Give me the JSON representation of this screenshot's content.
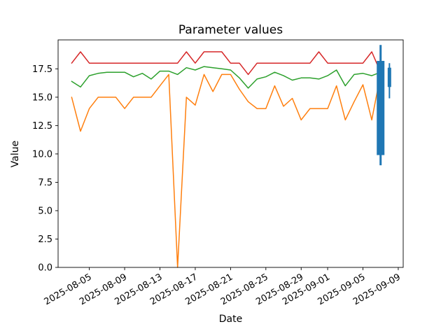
{
  "figure": {
    "background": "#ffffff",
    "text_color": "#000000"
  },
  "chart_data": {
    "type": "line",
    "title": "Parameter values",
    "xlabel": "Date",
    "ylabel": "Value",
    "grid": false,
    "legend": null,
    "ylim": [
      0,
      20.05
    ],
    "xlim_days": [
      -1.54,
      37.56
    ],
    "yticks": [
      {
        "label": "0.0",
        "value": 0
      },
      {
        "label": "2.5",
        "value": 2.5
      },
      {
        "label": "5.0",
        "value": 5
      },
      {
        "label": "7.5",
        "value": 7.5
      },
      {
        "label": "10.0",
        "value": 10
      },
      {
        "label": "12.5",
        "value": 12.5
      },
      {
        "label": "15.0",
        "value": 15
      },
      {
        "label": "17.5",
        "value": 17.5
      }
    ],
    "xticks": [
      {
        "label": "2025-08-05",
        "day": 2
      },
      {
        "label": "2025-08-09",
        "day": 6
      },
      {
        "label": "2025-08-13",
        "day": 10
      },
      {
        "label": "2025-08-17",
        "day": 14
      },
      {
        "label": "2025-08-21",
        "day": 18
      },
      {
        "label": "2025-08-25",
        "day": 22
      },
      {
        "label": "2025-08-29",
        "day": 26
      },
      {
        "label": "2025-09-01",
        "day": 29
      },
      {
        "label": "2025-09-05",
        "day": 33
      },
      {
        "label": "2025-09-09",
        "day": 37
      }
    ],
    "x_dates": [
      "2025-08-03",
      "2025-08-04",
      "2025-08-05",
      "2025-08-06",
      "2025-08-07",
      "2025-08-08",
      "2025-08-09",
      "2025-08-10",
      "2025-08-11",
      "2025-08-12",
      "2025-08-13",
      "2025-08-14",
      "2025-08-15",
      "2025-08-16",
      "2025-08-17",
      "2025-08-18",
      "2025-08-19",
      "2025-08-20",
      "2025-08-21",
      "2025-08-22",
      "2025-08-23",
      "2025-08-24",
      "2025-08-25",
      "2025-08-26",
      "2025-08-27",
      "2025-08-28",
      "2025-08-29",
      "2025-08-30",
      "2025-08-31",
      "2025-09-01",
      "2025-09-02",
      "2025-09-03",
      "2025-09-04",
      "2025-09-05",
      "2025-09-06",
      "2025-09-07"
    ],
    "series": [
      {
        "name": "red",
        "color": "#d62728",
        "values": [
          18,
          19,
          18,
          18,
          18,
          18,
          18,
          18,
          18,
          18,
          18,
          18,
          18,
          19,
          18,
          19,
          19,
          19,
          18,
          18,
          17,
          18,
          18,
          18,
          18,
          18,
          18,
          18,
          19,
          18,
          18,
          18,
          18,
          18,
          19,
          17.2
        ]
      },
      {
        "name": "green",
        "color": "#2ca02c",
        "values": [
          16.4,
          15.9,
          16.9,
          17.1,
          17.2,
          17.2,
          17.2,
          16.8,
          17.1,
          16.6,
          17.3,
          17.3,
          17.0,
          17.6,
          17.4,
          17.7,
          17.6,
          17.5,
          17.4,
          16.7,
          15.8,
          16.6,
          16.8,
          17.2,
          16.9,
          16.5,
          16.7,
          16.7,
          16.6,
          16.9,
          17.4,
          16.0,
          17.0,
          17.1,
          16.9,
          17.2
        ]
      },
      {
        "name": "orange",
        "color": "#ff7f0e",
        "values": [
          15,
          12,
          14,
          15,
          15,
          15,
          14,
          15,
          15,
          15,
          16,
          17,
          0,
          15,
          14.3,
          17,
          15.5,
          17,
          17,
          15.7,
          14.6,
          14,
          14,
          16,
          14.2,
          14.9,
          13,
          14,
          14,
          14,
          16,
          13,
          14.6,
          16.1,
          13,
          17
        ]
      }
    ],
    "candles": [
      {
        "date": "2025-09-07",
        "day": 35,
        "color": "#1f77b4",
        "high": 19.6,
        "body_top": 18.2,
        "body_bottom": 9.9,
        "low": 9.0,
        "body_width": 11,
        "wick_width": 3
      },
      {
        "date": "2025-09-08",
        "day": 36,
        "color": "#1f77b4",
        "high": 18.0,
        "body_top": 17.6,
        "body_bottom": 15.9,
        "low": 14.9,
        "body_width": 5,
        "wick_width": 2
      }
    ]
  }
}
